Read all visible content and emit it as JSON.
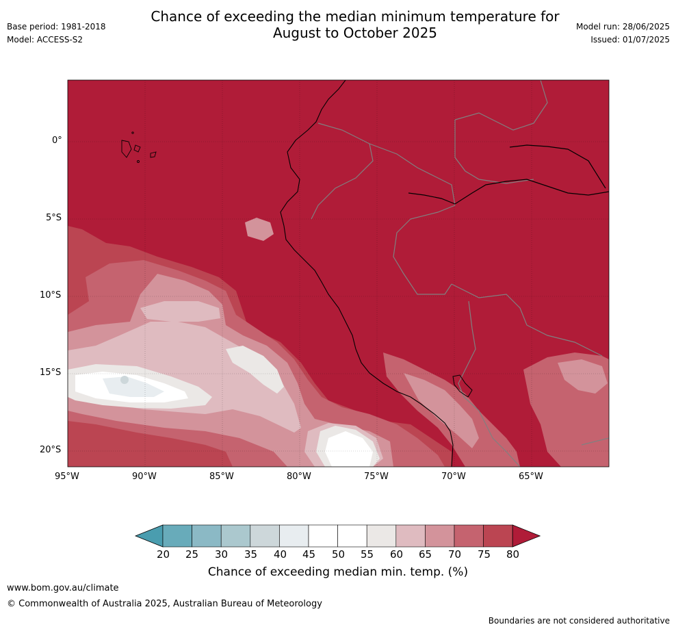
{
  "header": {
    "title_line1": "Chance of exceeding the median minimum temperature for",
    "title_line2": "August to October 2025",
    "base_period": "Base period: 1981-2018",
    "model": "Model: ACCESS-S2",
    "model_run": "Model run: 28/06/2025",
    "issued": "Issued: 01/07/2025"
  },
  "map": {
    "lat_ticks": [
      "0°",
      "5°S",
      "10°S",
      "15°S",
      "20°S"
    ],
    "lon_ticks": [
      "95°W",
      "90°W",
      "85°W",
      "80°W",
      "75°W",
      "70°W",
      "65°W"
    ],
    "background_class_color": "#b01c38"
  },
  "colorbar": {
    "labels": [
      "20",
      "25",
      "30",
      "35",
      "40",
      "45",
      "50",
      "55",
      "60",
      "65",
      "70",
      "75",
      "80"
    ],
    "colors": [
      "#4a9daf",
      "#68abba",
      "#8bb9c5",
      "#abc8ce",
      "#cdd7da",
      "#e8edf0",
      "#ffffff",
      "#ffffff",
      "#ebe8e6",
      "#dfbbc0",
      "#d3939b",
      "#c5636f",
      "#bb4552",
      "#b01c38"
    ],
    "title": "Chance of exceeding median min. temp. (%)"
  },
  "footer": {
    "website": "www.bom.gov.au/climate",
    "copyright": "© Commonwealth of Australia 2025, Australian Bureau of Meteorology",
    "disclaimer": "Boundaries are not considered authoritative"
  }
}
